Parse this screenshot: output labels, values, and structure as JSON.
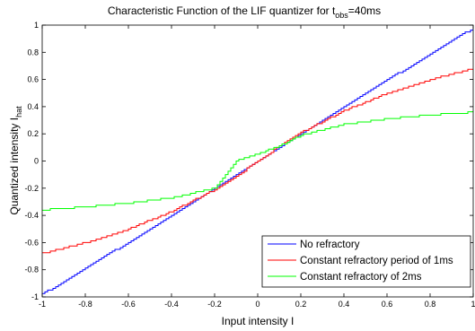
{
  "chart_data": {
    "type": "line",
    "title": {
      "main": "Characteristic Function of the LIF quantizer for t",
      "subscript": "obs",
      "suffix": "=40ms"
    },
    "xlabel": "Input intensity I",
    "ylabel": {
      "main": "Quantized intensity   I",
      "subscript": "hat"
    },
    "xlim": [
      -1,
      1
    ],
    "ylim": [
      -1,
      1
    ],
    "xticks": [
      {
        "value": -1,
        "label": "-1"
      },
      {
        "value": -0.8,
        "label": "-0.8"
      },
      {
        "value": -0.6,
        "label": "-0.6"
      },
      {
        "value": -0.4,
        "label": "-0.4"
      },
      {
        "value": -0.2,
        "label": "-0.2"
      },
      {
        "value": 0,
        "label": "0"
      },
      {
        "value": 0.2,
        "label": "0.2"
      },
      {
        "value": 0.4,
        "label": "0.4"
      },
      {
        "value": 0.6,
        "label": "0.6"
      },
      {
        "value": 0.8,
        "label": "0.8"
      },
      {
        "value": 1,
        "label": "1"
      }
    ],
    "yticks": [
      {
        "value": -1,
        "label": "-1"
      },
      {
        "value": -0.8,
        "label": "-0.8"
      },
      {
        "value": -0.6,
        "label": "-0.6"
      },
      {
        "value": -0.4,
        "label": "-0.4"
      },
      {
        "value": -0.2,
        "label": "-0.2"
      },
      {
        "value": 0,
        "label": "0"
      },
      {
        "value": 0.2,
        "label": "0.2"
      },
      {
        "value": 0.4,
        "label": "0.4"
      },
      {
        "value": 0.6,
        "label": "0.6"
      },
      {
        "value": 0.8,
        "label": "0.8"
      },
      {
        "value": 1,
        "label": "1"
      }
    ],
    "grid": false,
    "legend_position": "bottom-right",
    "series": [
      {
        "name": "No refractory",
        "color": "#0000ff",
        "style": "step",
        "points": [
          [
            -1,
            -0.98
          ],
          [
            -0.5,
            -0.5
          ],
          [
            -0.1,
            -0.1
          ],
          [
            0.1,
            0.1
          ],
          [
            0.5,
            0.5
          ],
          [
            1,
            0.98
          ]
        ]
      },
      {
        "name": "Constant refractory period of 1ms",
        "color": "#ff0000",
        "style": "step",
        "points": [
          [
            -1,
            -0.68
          ],
          [
            -0.8,
            -0.6
          ],
          [
            -0.6,
            -0.5
          ],
          [
            -0.4,
            -0.37
          ],
          [
            -0.2,
            -0.21
          ],
          [
            -0.1,
            -0.11
          ],
          [
            0.1,
            0.11
          ],
          [
            0.2,
            0.21
          ],
          [
            0.4,
            0.37
          ],
          [
            0.6,
            0.5
          ],
          [
            0.8,
            0.6
          ],
          [
            1,
            0.68
          ]
        ]
      },
      {
        "name": "Constant refractory of 2ms",
        "color": "#00ff00",
        "style": "step",
        "points": [
          [
            -1,
            -0.36
          ],
          [
            -0.9,
            -0.35
          ],
          [
            -0.6,
            -0.31
          ],
          [
            -0.4,
            -0.27
          ],
          [
            -0.2,
            -0.2
          ],
          [
            -0.1,
            0.0
          ],
          [
            0.1,
            0.11
          ],
          [
            0.2,
            0.19
          ],
          [
            0.4,
            0.27
          ],
          [
            0.6,
            0.31
          ],
          [
            0.8,
            0.34
          ],
          [
            1,
            0.36
          ]
        ]
      }
    ]
  }
}
